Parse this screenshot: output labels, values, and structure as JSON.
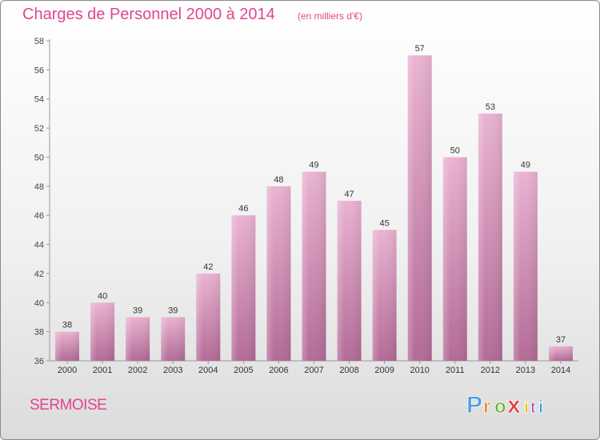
{
  "header": {
    "title": "Charges de Personnel 2000 à 2014",
    "subtitle": "(en milliers d'€)"
  },
  "footer": {
    "city": "SERMOISE",
    "brand": "Proxiti"
  },
  "colors": {
    "title": "#e0468f",
    "bar_light": "#eab3d2",
    "bar_dark": "#b36b96",
    "logo": [
      "#4f9be0",
      "#f47c20",
      "#62b22f",
      "#e2383f",
      "#f5b70b",
      "#9a59b5",
      "#2f9fd8"
    ]
  },
  "chart_data": {
    "type": "bar",
    "title": "Charges de Personnel 2000 à 2014",
    "subtitle": "(en milliers d'€)",
    "xlabel": "",
    "ylabel": "",
    "categories": [
      "2000",
      "2001",
      "2002",
      "2003",
      "2004",
      "2005",
      "2006",
      "2007",
      "2008",
      "2009",
      "2010",
      "2011",
      "2012",
      "2013",
      "2014"
    ],
    "values": [
      38,
      40,
      39,
      39,
      42,
      46,
      48,
      49,
      47,
      45,
      57,
      50,
      53,
      49,
      37
    ],
    "ylim": [
      36,
      58
    ],
    "yticks": [
      36,
      38,
      40,
      42,
      44,
      46,
      48,
      50,
      52,
      54,
      56,
      58
    ],
    "grid": false,
    "legend": "none",
    "data_labels": true
  }
}
